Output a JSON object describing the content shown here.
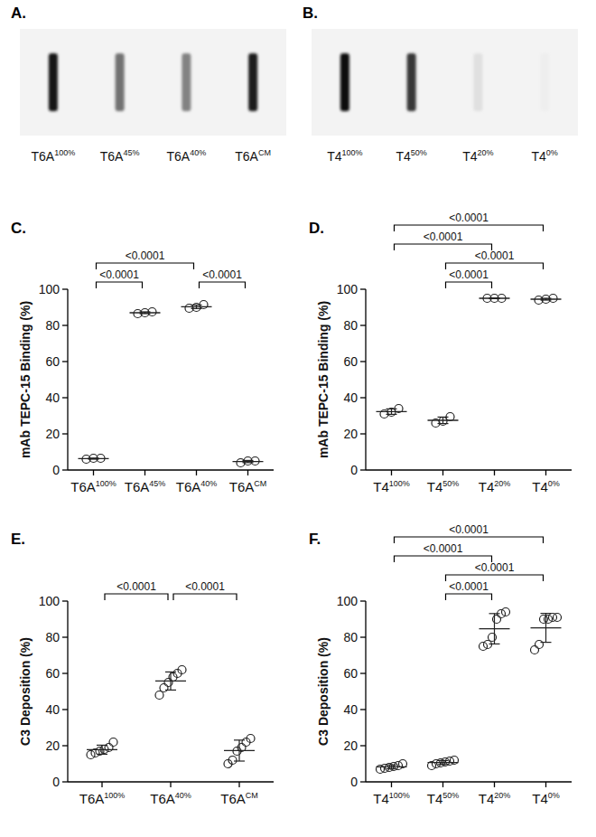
{
  "chart_data": [
    {
      "type": "blot",
      "title": "A.",
      "categories": [
        "T6A100%",
        "T6A45%",
        "T6A40%",
        "T6ACM"
      ],
      "values": [
        95,
        55,
        48,
        92
      ]
    },
    {
      "type": "blot",
      "title": "B.",
      "categories": [
        "T4100%",
        "T450%",
        "T420%",
        "T40%"
      ],
      "values": [
        98,
        80,
        8,
        2
      ]
    },
    {
      "type": "scatter",
      "title": "C.",
      "y_label": "mAb TEPC-15 Binding (%)",
      "categories": [
        "T6A100%",
        "T6A45%",
        "T6A40%",
        "T6ACM"
      ],
      "points": [
        [
          6,
          6.5,
          6.5
        ],
        [
          86.5,
          87,
          87.5
        ],
        [
          89.5,
          90,
          91.5
        ],
        [
          4,
          5,
          5
        ]
      ],
      "values": [
        6.3,
        87,
        90.3,
        4.7
      ],
      "error": [
        0.3,
        0.5,
        1,
        0.6
      ],
      "ylim": [
        0,
        100
      ],
      "yticks": [
        0,
        20,
        40,
        60,
        80,
        100
      ],
      "annotations": [
        {
          "from": 0,
          "to": 1,
          "label": "<0.0001"
        },
        {
          "from": 2,
          "to": 3,
          "label": "<0.0001"
        },
        {
          "from": 0,
          "to": 2,
          "label": "<0.0001"
        }
      ]
    },
    {
      "type": "scatter",
      "title": "D.",
      "y_label": "mAb TEPC-15 Binding (%)",
      "categories": [
        "T4100%",
        "T450%",
        "T420%",
        "T40%"
      ],
      "points": [
        [
          31,
          32,
          34
        ],
        [
          26,
          27,
          29.5
        ],
        [
          95,
          95,
          95
        ],
        [
          94,
          94.5,
          95
        ]
      ],
      "values": [
        32.3,
        27.5,
        95,
        94.5
      ],
      "error": [
        1.5,
        1.8,
        0.2,
        0.5
      ],
      "ylim": [
        0,
        100
      ],
      "yticks": [
        0,
        20,
        40,
        60,
        80,
        100
      ],
      "annotations": [
        {
          "from": 1,
          "to": 2,
          "label": "<0.0001"
        },
        {
          "from": 1,
          "to": 3,
          "label": "<0.0001"
        },
        {
          "from": 0,
          "to": 2,
          "label": "<0.0001"
        },
        {
          "from": 0,
          "to": 3,
          "label": "<0.0001"
        }
      ]
    },
    {
      "type": "scatter",
      "title": "E.",
      "y_label": "C3 Deposition (%)",
      "categories": [
        "T6A100%",
        "T6A40%",
        "T6ACM"
      ],
      "points": [
        [
          15,
          16,
          17,
          18,
          19,
          22
        ],
        [
          48,
          52,
          55,
          58,
          60,
          62
        ],
        [
          10,
          12,
          17,
          19,
          22,
          24
        ]
      ],
      "values": [
        17.8,
        55.8,
        17.3
      ],
      "error": [
        2.5,
        5,
        5.8
      ],
      "ylim": [
        0,
        100
      ],
      "yticks": [
        0,
        20,
        40,
        60,
        80,
        100
      ],
      "annotations": [
        {
          "from": 0,
          "to": 1,
          "label": "<0.0001"
        },
        {
          "from": 1,
          "to": 2,
          "label": "<0.0001"
        }
      ]
    },
    {
      "type": "scatter",
      "title": "F.",
      "y_label": "C3 Deposition (%)",
      "categories": [
        "T4100%",
        "T450%",
        "T420%",
        "T40%"
      ],
      "points": [
        [
          7,
          7.5,
          8,
          8.5,
          9,
          10
        ],
        [
          9,
          10,
          10.5,
          11,
          11.5,
          12
        ],
        [
          75,
          76,
          80,
          90,
          93,
          94
        ],
        [
          73,
          76,
          90,
          90,
          91,
          91
        ]
      ],
      "values": [
        8.3,
        10.7,
        84.7,
        85.2
      ],
      "error": [
        1.1,
        1.1,
        8.4,
        8
      ],
      "ylim": [
        0,
        100
      ],
      "yticks": [
        0,
        20,
        40,
        60,
        80,
        100
      ],
      "annotations": [
        {
          "from": 1,
          "to": 2,
          "label": "<0.0001"
        },
        {
          "from": 1,
          "to": 3,
          "label": "<0.0001"
        },
        {
          "from": 0,
          "to": 2,
          "label": "<0.0001"
        },
        {
          "from": 0,
          "to": 3,
          "label": "<0.0001"
        }
      ]
    }
  ]
}
